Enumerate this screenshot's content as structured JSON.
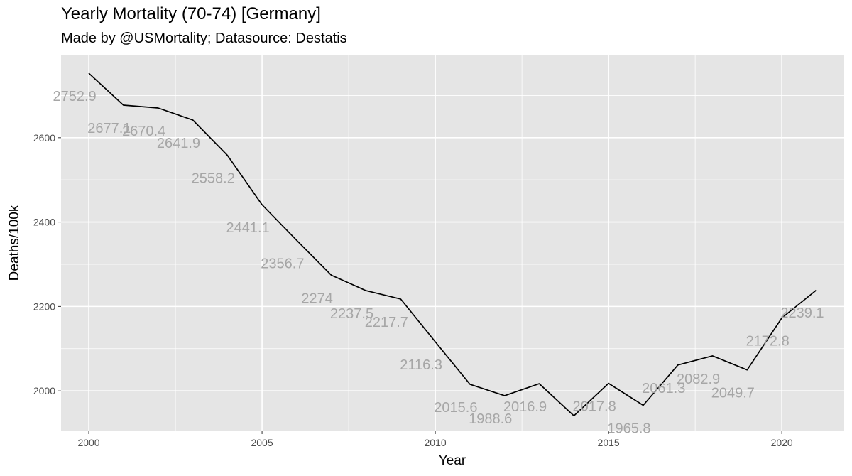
{
  "chart_data": {
    "type": "line",
    "title": "Yearly Mortality (70-74) [Germany]",
    "subtitle": "Made by @USMortality; Datasource: Destatis",
    "xlabel": "Year",
    "ylabel": "Deaths/100k",
    "xlim": [
      1999.2,
      2021.8
    ],
    "ylim": [
      1906,
      2795
    ],
    "x_ticks": [
      2000,
      2005,
      2010,
      2015,
      2020
    ],
    "y_ticks": [
      2000,
      2200,
      2400,
      2600
    ],
    "grid": true,
    "legend": "none",
    "series": [
      {
        "x": [
          2000,
          2001,
          2002,
          2003,
          2004,
          2005,
          2006,
          2007,
          2008,
          2009,
          2010,
          2011,
          2012,
          2013,
          2014,
          2015,
          2016,
          2017,
          2018,
          2019,
          2020,
          2021
        ],
        "values": [
          2752.9,
          2677.1,
          2670.4,
          2641.9,
          2558.2,
          2441.1,
          2356.7,
          2274,
          2237.5,
          2217.7,
          2116.3,
          2015.6,
          1988.6,
          2016.9,
          1940.8,
          2017.8,
          1965.8,
          2061.3,
          2082.9,
          2049.7,
          2172.8,
          2239.1
        ],
        "labels": [
          "2752.9",
          "2677.1",
          "2670.4",
          "2641.9",
          "2558.2",
          "2441.1",
          "2356.7",
          "2274",
          "2237.5",
          "2217.7",
          "2116.3",
          "2015.6",
          "1988.6",
          "2016.9",
          "",
          "2017.8",
          "1965.8",
          "2061.3",
          "2082.9",
          "2049.7",
          "2172.8",
          "2239.1"
        ]
      }
    ]
  },
  "colors": {
    "panel": "#e5e5e5",
    "grid": "#ffffff",
    "line": "#000000",
    "label": "#a6a6a6"
  }
}
